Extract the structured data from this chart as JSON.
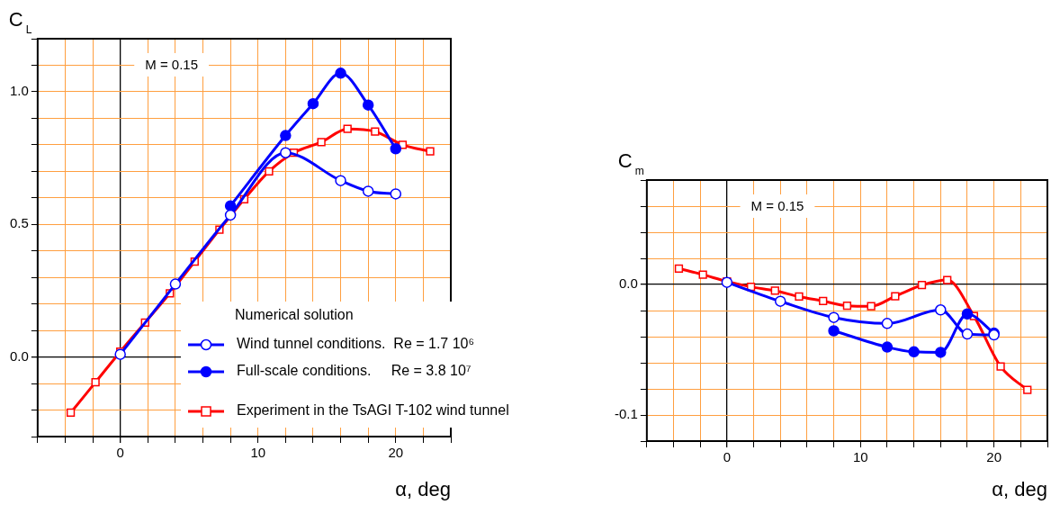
{
  "chart_data": [
    {
      "type": "line",
      "xlabel": "α, deg",
      "ylabel": "C$_{L}$",
      "annotations": [
        "M = 0.15"
      ],
      "legend": "bottom right",
      "legend_title": "Numerical solution",
      "xlim": [
        -6,
        24
      ],
      "ylim": [
        -0.3,
        1.2
      ],
      "xticks": [
        {
          "value": -6,
          "label": null
        },
        {
          "value": -4,
          "label": null
        },
        {
          "value": -2,
          "label": null
        },
        0,
        {
          "value": 2,
          "label": null
        },
        {
          "value": 4,
          "label": null
        },
        {
          "value": 6,
          "label": null
        },
        {
          "value": 8,
          "label": null
        },
        10,
        {
          "value": 12,
          "label": null
        },
        {
          "value": 14,
          "label": null
        },
        {
          "value": 16,
          "label": null
        },
        {
          "value": 18,
          "label": null
        },
        20,
        {
          "value": 22,
          "label": null
        },
        {
          "value": 24,
          "label": null
        }
      ],
      "yticks": [
        {
          "value": -0.3,
          "label": null
        },
        {
          "value": -0.2,
          "label": null
        },
        {
          "value": -0.1,
          "label": null
        },
        {
          "value": 0,
          "label": "0.0"
        },
        {
          "value": 0.1,
          "label": null
        },
        {
          "value": 0.2,
          "label": null
        },
        {
          "value": 0.3,
          "label": null
        },
        {
          "value": 0.4,
          "label": null
        },
        {
          "value": 0.5,
          "label": "0.5"
        },
        {
          "value": 0.6,
          "label": null
        },
        {
          "value": 0.7,
          "label": null
        },
        {
          "value": 0.8,
          "label": null
        },
        {
          "value": 0.9,
          "label": null
        },
        {
          "value": 1.0,
          "label": "1.0"
        },
        {
          "value": 1.1,
          "label": null
        },
        {
          "value": 1.2,
          "label": null
        }
      ],
      "grid": true,
      "series": [
        {
          "name": "Wind tunnel conditions.  Re = 1.7 10⁶",
          "color": "#0000ff",
          "marker": "circle",
          "x": [
            0,
            4,
            8,
            12,
            16,
            18,
            20
          ],
          "values": [
            0.01,
            0.275,
            0.535,
            0.77,
            0.665,
            0.625,
            0.615
          ]
        },
        {
          "name": "Full-scale conditions.     Re = 3.8 10⁷",
          "color": "#0000ff",
          "marker": "circle",
          "x": [
            8,
            12,
            14,
            16,
            18,
            20
          ],
          "values": [
            0.57,
            0.835,
            0.955,
            1.07,
            0.95,
            0.785
          ]
        },
        {
          "name": "Experiment in the TsAGI T-102 wind tunnel",
          "color": "#ff0000",
          "marker": "square",
          "x": [
            -3.6,
            -1.8,
            0,
            1.8,
            3.6,
            5.4,
            7.2,
            9,
            10.8,
            12.6,
            14.6,
            16.5,
            18.5,
            20.5,
            22.5
          ],
          "values": [
            -0.21,
            -0.095,
            0.02,
            0.13,
            0.24,
            0.36,
            0.48,
            0.595,
            0.7,
            0.77,
            0.81,
            0.86,
            0.85,
            0.8,
            0.775
          ]
        }
      ]
    },
    {
      "type": "line",
      "xlabel": "α, deg",
      "ylabel": "C$_{m}$",
      "annotations": [
        "M = 0.15"
      ],
      "xlim": [
        -6,
        24
      ],
      "ylim": [
        -0.12,
        0.08
      ],
      "xticks": [
        {
          "value": -6,
          "label": null
        },
        {
          "value": -4,
          "label": null
        },
        {
          "value": -2,
          "label": null
        },
        0,
        {
          "value": 2,
          "label": null
        },
        {
          "value": 4,
          "label": null
        },
        {
          "value": 6,
          "label": null
        },
        {
          "value": 8,
          "label": null
        },
        10,
        {
          "value": 12,
          "label": null
        },
        {
          "value": 14,
          "label": null
        },
        {
          "value": 16,
          "label": null
        },
        {
          "value": 18,
          "label": null
        },
        20,
        {
          "value": 22,
          "label": null
        },
        {
          "value": 24,
          "label": null
        }
      ],
      "yticks": [
        {
          "value": -0.12,
          "label": null
        },
        {
          "value": -0.1,
          "label": "-0.1"
        },
        {
          "value": -0.08,
          "label": null
        },
        {
          "value": -0.06,
          "label": null
        },
        {
          "value": -0.04,
          "label": null
        },
        {
          "value": -0.02,
          "label": null
        },
        {
          "value": 0,
          "label": "0.0"
        },
        {
          "value": 0.02,
          "label": null
        },
        {
          "value": 0.04,
          "label": null
        },
        {
          "value": 0.06,
          "label": null
        },
        {
          "value": 0.08,
          "label": null
        }
      ],
      "grid": true,
      "series": [
        {
          "color": "#0000ff",
          "marker": "circle",
          "x": [
            0,
            4,
            8,
            12,
            16,
            18,
            20
          ],
          "values": [
            0.0016,
            -0.0129,
            -0.0253,
            -0.0299,
            -0.0195,
            -0.038,
            -0.0387
          ]
        },
        {
          "color": "#0000ff",
          "marker": "circle",
          "x": [
            8,
            12,
            14,
            16,
            18,
            20
          ],
          "values": [
            -0.0355,
            -0.048,
            -0.0516,
            -0.052,
            -0.0226,
            -0.0373
          ]
        },
        {
          "color": "#ff0000",
          "marker": "square",
          "x": [
            -3.6,
            -1.8,
            0,
            1.8,
            3.6,
            5.4,
            7.2,
            9,
            10.8,
            12.6,
            14.6,
            16.5,
            18.5,
            20.5,
            22.5
          ],
          "values": [
            0.0122,
            0.0075,
            0.0023,
            -0.0018,
            -0.0048,
            -0.0093,
            -0.0127,
            -0.0163,
            -0.0167,
            -0.009,
            -0.0005,
            0.0034,
            -0.0242,
            -0.0629,
            -0.0808
          ]
        }
      ]
    }
  ]
}
